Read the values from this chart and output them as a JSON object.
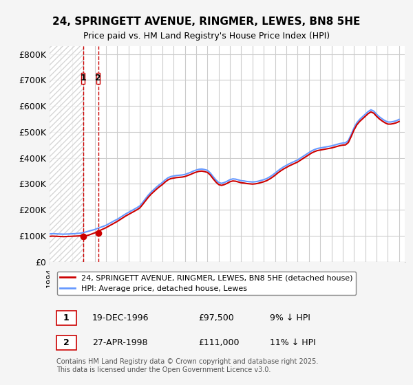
{
  "title_line1": "24, SPRINGETT AVENUE, RINGMER, LEWES, BN8 5HE",
  "title_line2": "Price paid vs. HM Land Registry's House Price Index (HPI)",
  "xlabel": "",
  "ylabel": "",
  "y_ticks": [
    0,
    100000,
    200000,
    300000,
    400000,
    500000,
    600000,
    700000,
    800000
  ],
  "y_tick_labels": [
    "£0",
    "£100K",
    "£200K",
    "£300K",
    "£400K",
    "£500K",
    "£600K",
    "£700K",
    "£800K"
  ],
  "ylim": [
    0,
    830000
  ],
  "xlim_start": 1994.0,
  "xlim_end": 2025.5,
  "hpi_color": "#6699ff",
  "price_color": "#cc0000",
  "hatch_color": "#dddddd",
  "background_color": "#f5f5f5",
  "plot_bg_color": "#ffffff",
  "grid_color": "#cccccc",
  "legend_label_price": "24, SPRINGETT AVENUE, RINGMER, LEWES, BN8 5HE (detached house)",
  "legend_label_hpi": "HPI: Average price, detached house, Lewes",
  "purchase1_date": 1996.97,
  "purchase1_price": 97500,
  "purchase1_label": "1",
  "purchase2_date": 1998.32,
  "purchase2_price": 111000,
  "purchase2_label": "2",
  "footer_text": "Contains HM Land Registry data © Crown copyright and database right 2025.\nThis data is licensed under the Open Government Licence v3.0.",
  "table_row1": [
    "1",
    "19-DEC-1996",
    "£97,500",
    "9% ↓ HPI"
  ],
  "table_row2": [
    "2",
    "27-APR-1998",
    "£111,000",
    "11% ↓ HPI"
  ],
  "hpi_data_x": [
    1994.0,
    1994.25,
    1994.5,
    1994.75,
    1995.0,
    1995.25,
    1995.5,
    1995.75,
    1996.0,
    1996.25,
    1996.5,
    1996.75,
    1997.0,
    1997.25,
    1997.5,
    1997.75,
    1998.0,
    1998.25,
    1998.5,
    1998.75,
    1999.0,
    1999.25,
    1999.5,
    1999.75,
    2000.0,
    2000.25,
    2000.5,
    2000.75,
    2001.0,
    2001.25,
    2001.5,
    2001.75,
    2002.0,
    2002.25,
    2002.5,
    2002.75,
    2003.0,
    2003.25,
    2003.5,
    2003.75,
    2004.0,
    2004.25,
    2004.5,
    2004.75,
    2005.0,
    2005.25,
    2005.5,
    2005.75,
    2006.0,
    2006.25,
    2006.5,
    2006.75,
    2007.0,
    2007.25,
    2007.5,
    2007.75,
    2008.0,
    2008.25,
    2008.5,
    2008.75,
    2009.0,
    2009.25,
    2009.5,
    2009.75,
    2010.0,
    2010.25,
    2010.5,
    2010.75,
    2011.0,
    2011.25,
    2011.5,
    2011.75,
    2012.0,
    2012.25,
    2012.5,
    2012.75,
    2013.0,
    2013.25,
    2013.5,
    2013.75,
    2014.0,
    2014.25,
    2014.5,
    2014.75,
    2015.0,
    2015.25,
    2015.5,
    2015.75,
    2016.0,
    2016.25,
    2016.5,
    2016.75,
    2017.0,
    2017.25,
    2017.5,
    2017.75,
    2018.0,
    2018.25,
    2018.5,
    2018.75,
    2019.0,
    2019.25,
    2019.5,
    2019.75,
    2020.0,
    2020.25,
    2020.5,
    2020.75,
    2021.0,
    2021.25,
    2021.5,
    2021.75,
    2022.0,
    2022.25,
    2022.5,
    2022.75,
    2023.0,
    2023.25,
    2023.5,
    2023.75,
    2024.0,
    2024.25,
    2024.5,
    2024.75,
    2025.0
  ],
  "hpi_data_y": [
    107000,
    108000,
    107500,
    107000,
    106500,
    106000,
    106500,
    107000,
    107500,
    108000,
    109000,
    110000,
    112000,
    115000,
    118000,
    121000,
    124000,
    128000,
    132000,
    136000,
    140000,
    146000,
    152000,
    158000,
    163000,
    170000,
    177000,
    184000,
    190000,
    196000,
    202000,
    208000,
    215000,
    228000,
    242000,
    256000,
    268000,
    278000,
    288000,
    297000,
    305000,
    315000,
    323000,
    328000,
    330000,
    332000,
    333000,
    334000,
    336000,
    340000,
    344000,
    349000,
    353000,
    356000,
    357000,
    355000,
    352000,
    342000,
    328000,
    315000,
    305000,
    302000,
    305000,
    310000,
    316000,
    319000,
    318000,
    315000,
    312000,
    311000,
    309000,
    308000,
    307000,
    308000,
    310000,
    313000,
    316000,
    320000,
    326000,
    333000,
    341000,
    350000,
    358000,
    365000,
    371000,
    377000,
    382000,
    387000,
    392000,
    399000,
    406000,
    413000,
    420000,
    427000,
    432000,
    436000,
    438000,
    440000,
    442000,
    444000,
    446000,
    449000,
    452000,
    455000,
    457000,
    458000,
    467000,
    490000,
    515000,
    535000,
    548000,
    558000,
    568000,
    578000,
    585000,
    580000,
    568000,
    558000,
    550000,
    543000,
    538000,
    538000,
    540000,
    543000,
    548000
  ],
  "price_data_x": [
    1994.0,
    1994.25,
    1994.5,
    1994.75,
    1995.0,
    1995.25,
    1995.5,
    1995.75,
    1996.0,
    1996.25,
    1996.5,
    1996.75,
    1997.0,
    1997.25,
    1997.5,
    1997.75,
    1998.0,
    1998.25,
    1998.5,
    1998.75,
    1999.0,
    1999.25,
    1999.5,
    1999.75,
    2000.0,
    2000.25,
    2000.5,
    2000.75,
    2001.0,
    2001.25,
    2001.5,
    2001.75,
    2002.0,
    2002.25,
    2002.5,
    2002.75,
    2003.0,
    2003.25,
    2003.5,
    2003.75,
    2004.0,
    2004.25,
    2004.5,
    2004.75,
    2005.0,
    2005.25,
    2005.5,
    2005.75,
    2006.0,
    2006.25,
    2006.5,
    2006.75,
    2007.0,
    2007.25,
    2007.5,
    2007.75,
    2008.0,
    2008.25,
    2008.5,
    2008.75,
    2009.0,
    2009.25,
    2009.5,
    2009.75,
    2010.0,
    2010.25,
    2010.5,
    2010.75,
    2011.0,
    2011.25,
    2011.5,
    2011.75,
    2012.0,
    2012.25,
    2012.5,
    2012.75,
    2013.0,
    2013.25,
    2013.5,
    2013.75,
    2014.0,
    2014.25,
    2014.5,
    2014.75,
    2015.0,
    2015.25,
    2015.5,
    2015.75,
    2016.0,
    2016.25,
    2016.5,
    2016.75,
    2017.0,
    2017.25,
    2017.5,
    2017.75,
    2018.0,
    2018.25,
    2018.5,
    2018.75,
    2019.0,
    2019.25,
    2019.5,
    2019.75,
    2020.0,
    2020.25,
    2020.5,
    2020.75,
    2021.0,
    2021.25,
    2021.5,
    2021.75,
    2022.0,
    2022.25,
    2022.5,
    2022.75,
    2023.0,
    2023.25,
    2023.5,
    2023.75,
    2024.0,
    2024.25,
    2024.5,
    2024.75,
    2025.0
  ],
  "price_data_y": [
    97500,
    98500,
    98000,
    97500,
    97000,
    96500,
    97000,
    97500,
    98000,
    98500,
    99000,
    99500,
    97500,
    100000,
    103000,
    107000,
    111000,
    116000,
    121000,
    126000,
    131000,
    137000,
    143000,
    149000,
    155000,
    162000,
    169000,
    176000,
    182000,
    188000,
    194000,
    200000,
    207000,
    220000,
    234000,
    248000,
    260000,
    270000,
    280000,
    289000,
    297000,
    307000,
    315000,
    320000,
    322000,
    324000,
    325000,
    326000,
    328000,
    332000,
    336000,
    341000,
    345000,
    348000,
    349000,
    347000,
    344000,
    334000,
    320000,
    307000,
    297000,
    294000,
    297000,
    302000,
    308000,
    311000,
    310000,
    307000,
    304000,
    303000,
    301000,
    300000,
    299000,
    300000,
    302000,
    305000,
    308000,
    312000,
    318000,
    325000,
    333000,
    342000,
    350000,
    357000,
    363000,
    369000,
    374000,
    379000,
    384000,
    391000,
    398000,
    405000,
    412000,
    419000,
    424000,
    428000,
    430000,
    432000,
    434000,
    436000,
    438000,
    441000,
    444000,
    447000,
    449000,
    450000,
    459000,
    482000,
    507000,
    527000,
    540000,
    550000,
    560000,
    570000,
    577000,
    572000,
    560000,
    550000,
    542000,
    535000,
    530000,
    530000,
    532000,
    535000,
    540000
  ]
}
